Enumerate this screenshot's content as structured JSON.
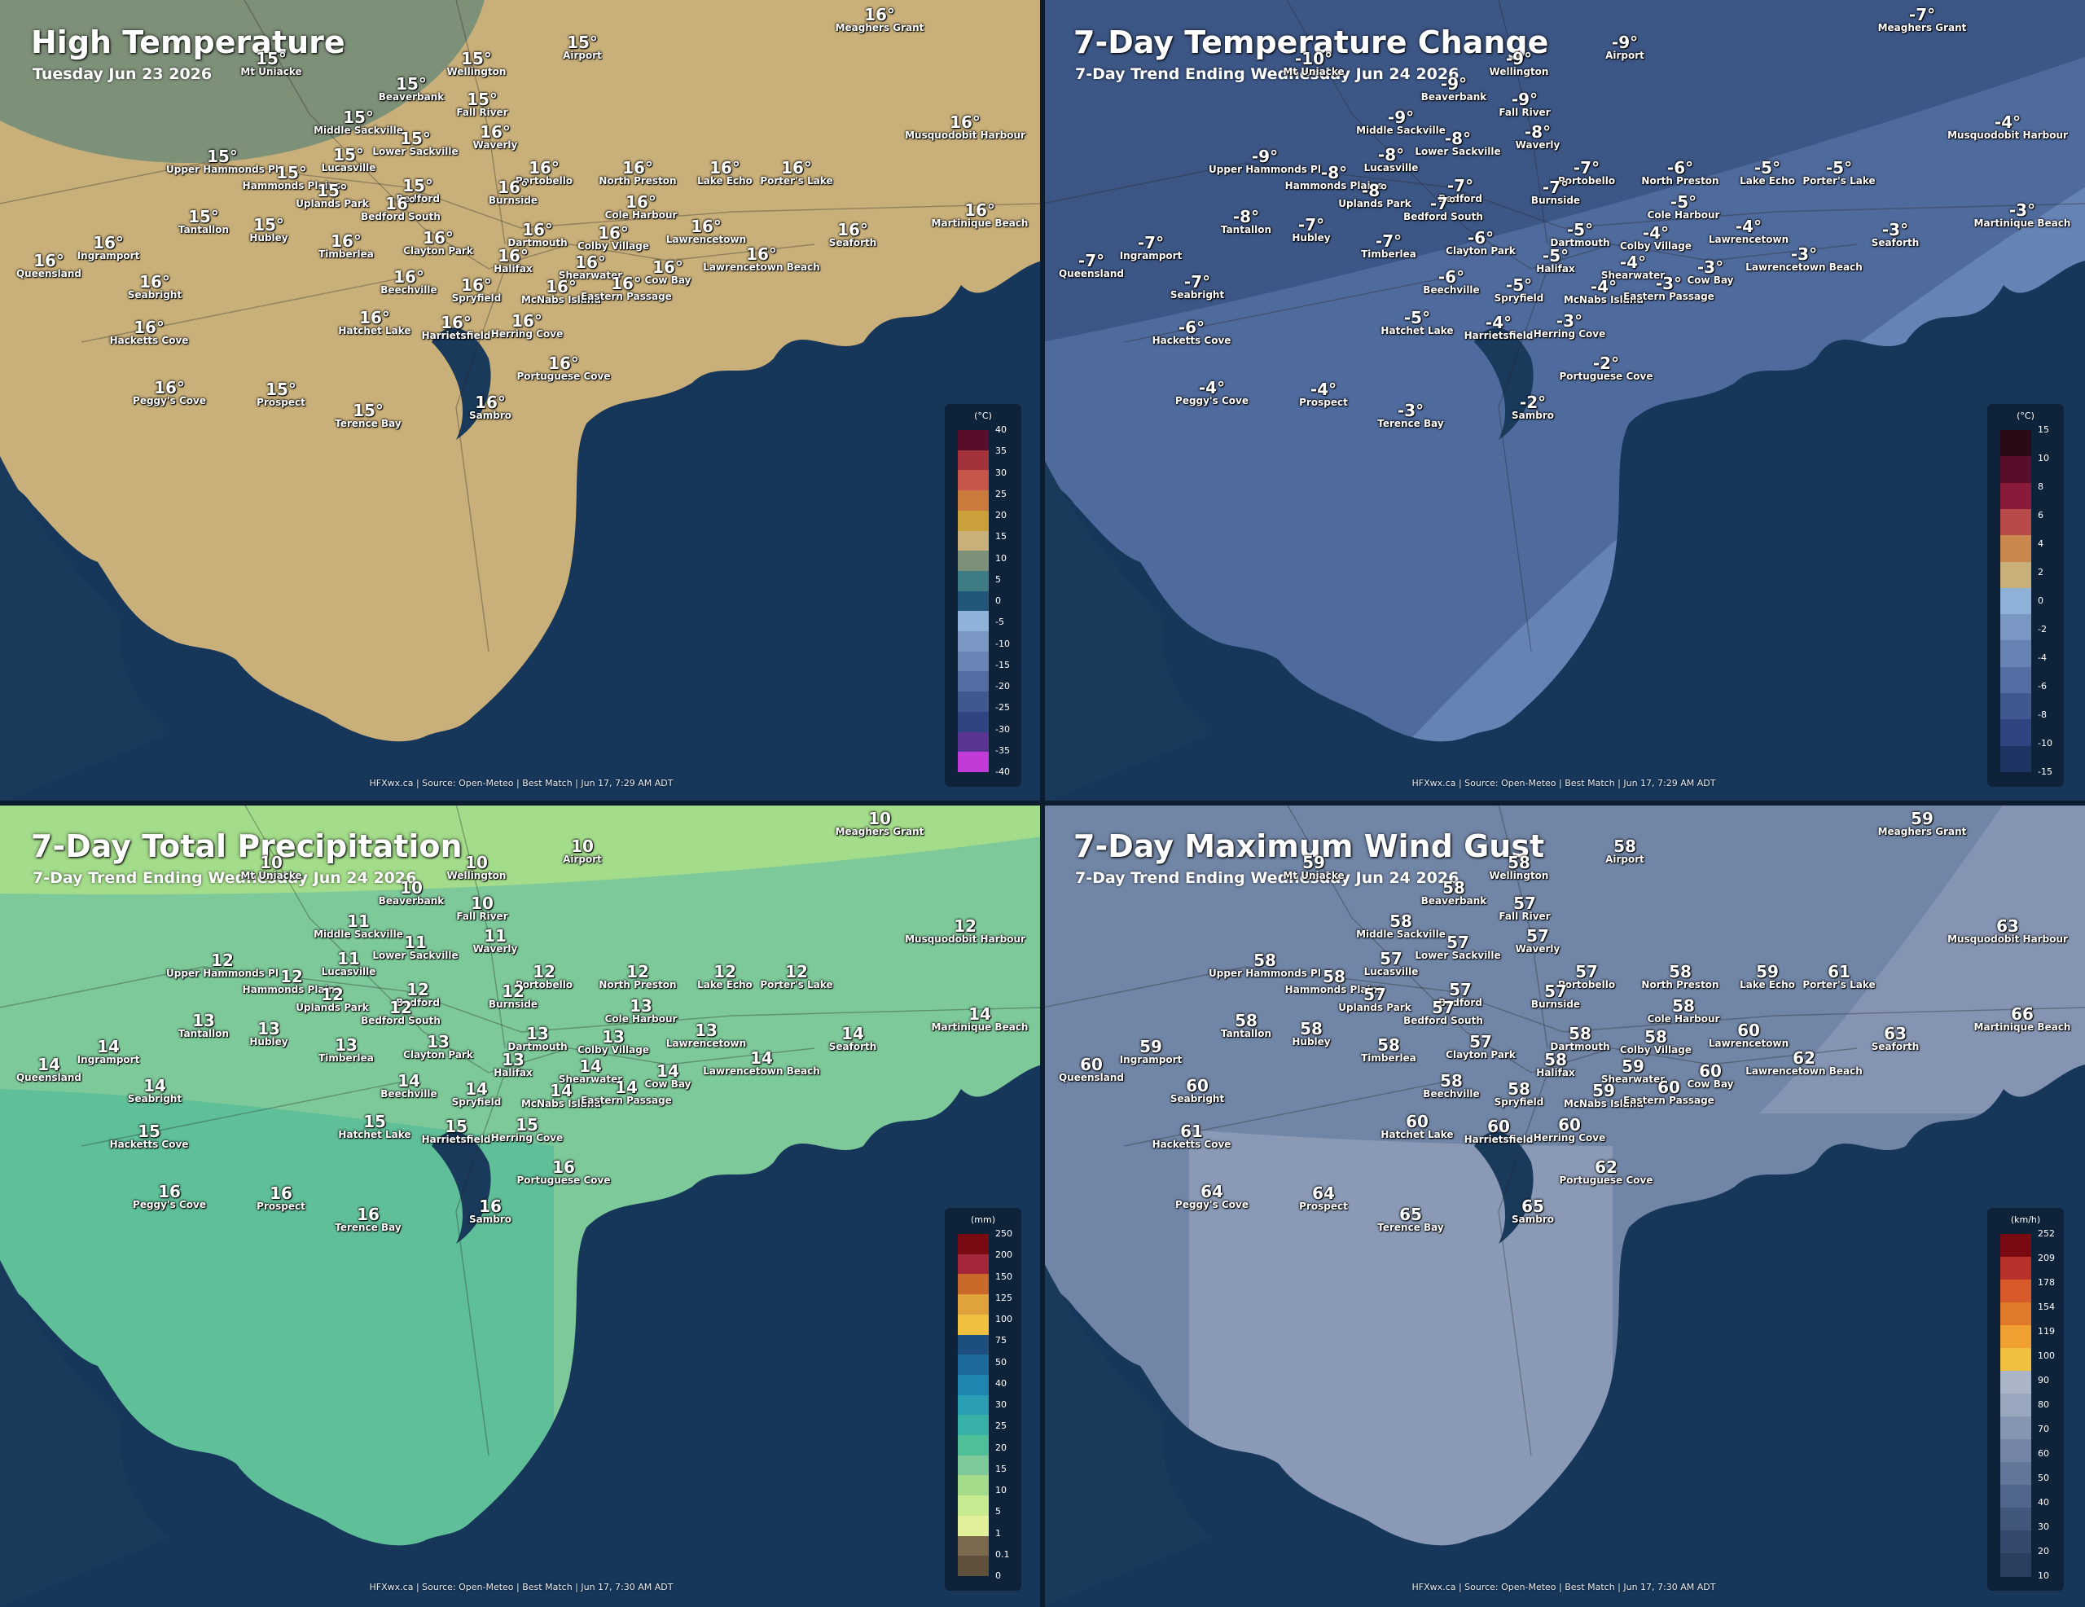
{
  "panels": [
    {
      "title": "High Temperature",
      "subtitle": "Tuesday Jun 23 2026",
      "footer": "HFXwx.ca | Source: Open-Meteo | Best Match | Jun 17, 7:29 AM ADT",
      "land_color": "#c9b07a",
      "zone_colors": [
        "#7d9078"
      ],
      "legend": {
        "unit": "(°C)",
        "ticks": [
          "40",
          "35",
          "30",
          "25",
          "20",
          "15",
          "10",
          "5",
          "0",
          "-5",
          "-10",
          "-15",
          "-20",
          "-25",
          "-30",
          "-35",
          "-40"
        ],
        "colors": [
          "#5a0d2a",
          "#a3323b",
          "#c8554a",
          "#c97a3c",
          "#c9a03a",
          "#c9b07a",
          "#7d9078",
          "#3e7c85",
          "#23577a",
          "#8fb2d8",
          "#7a97c4",
          "#6a84b6",
          "#546ea3",
          "#3f5890",
          "#2f4480",
          "#5a3594",
          "#c23ad8"
        ]
      },
      "labels": {
        "mtuniacke": "15°",
        "wellington": "15°",
        "airport": "15°",
        "meaghers": "16°",
        "beaverbank": "15°",
        "fallriver": "15°",
        "middlesackville": "15°",
        "lowersackville": "15°",
        "waverly": "16°",
        "upperhammonds": "15°",
        "lucasville": "15°",
        "hammondsplains": "15°",
        "uplandspark": "15°",
        "bedford": "15°",
        "portobello": "16°",
        "northpreston": "16°",
        "lakeecho": "16°",
        "porterslake": "16°",
        "musquodobit": "16°",
        "burnside": "16°",
        "bedfordsouth": "16°",
        "coleharbour": "16°",
        "tantallon": "15°",
        "hubley": "15°",
        "dartmouth": "16°",
        "colbyvillage": "16°",
        "lawrencetown": "16°",
        "seaforth": "16°",
        "martinique": "16°",
        "ingramport": "16°",
        "timberlea": "16°",
        "claytonpark": "16°",
        "halifax": "16°",
        "queensland": "16°",
        "beechville": "16°",
        "shearwater": "16°",
        "cowbay": "16°",
        "lawrencetownbeach": "16°",
        "seabright": "16°",
        "spryfield": "16°",
        "mcnabs": "16°",
        "easternpassage": "16°",
        "hackettscove": "16°",
        "hatchetlake": "16°",
        "harrietsfield": "16°",
        "herringcove": "16°",
        "portuguesecove": "16°",
        "peggyscove": "16°",
        "prospect": "15°",
        "terencebay": "15°",
        "sambro": "16°"
      }
    },
    {
      "title": "7-Day Temperature Change",
      "subtitle": "7-Day Trend Ending Wednesday Jun 24 2026",
      "footer": "HFXwx.ca | Source: Open-Meteo | Best Match | Jun 17, 7:29 AM ADT",
      "land_color": "#3c5686",
      "zone_colors": [
        "#4f6a9c",
        "#6683b6",
        "#86a3cf"
      ],
      "legend": {
        "unit": "(°C)",
        "ticks": [
          "15",
          "10",
          "8",
          "6",
          "4",
          "2",
          "0",
          "-2",
          "-4",
          "-6",
          "-8",
          "-10",
          "-15"
        ],
        "colors": [
          "#2a0a14",
          "#5a0d2a",
          "#8a1a3a",
          "#b84a4a",
          "#c9874e",
          "#c9b07a",
          "#8fb2d8",
          "#7a97c4",
          "#6783b3",
          "#546ea3",
          "#3f5890",
          "#2f4480",
          "#1e3462"
        ]
      },
      "labels": {
        "mtuniacke": "-10°",
        "wellington": "-9°",
        "airport": "-9°",
        "meaghers": "-7°",
        "beaverbank": "-9°",
        "fallriver": "-9°",
        "middlesackville": "-9°",
        "lowersackville": "-8°",
        "waverly": "-8°",
        "upperhammonds": "-9°",
        "lucasville": "-8°",
        "hammondsplains": "-8°",
        "uplandspark": "-8°",
        "bedford": "-7°",
        "portobello": "-7°",
        "northpreston": "-6°",
        "lakeecho": "-5°",
        "porterslake": "-5°",
        "musquodobit": "-4°",
        "burnside": "-7°",
        "bedfordsouth": "-7°",
        "coleharbour": "-5°",
        "tantallon": "-8°",
        "hubley": "-7°",
        "dartmouth": "-5°",
        "colbyvillage": "-4°",
        "lawrencetown": "-4°",
        "seaforth": "-3°",
        "martinique": "-3°",
        "ingramport": "-7°",
        "timberlea": "-7°",
        "claytonpark": "-6°",
        "halifax": "-5°",
        "queensland": "-7°",
        "beechville": "-6°",
        "shearwater": "-4°",
        "cowbay": "-3°",
        "lawrencetownbeach": "-3°",
        "seabright": "-7°",
        "spryfield": "-5°",
        "mcnabs": "-4°",
        "easternpassage": "-3°",
        "hackettscove": "-6°",
        "hatchetlake": "-5°",
        "harrietsfield": "-4°",
        "herringcove": "-3°",
        "portuguesecove": "-2°",
        "peggyscove": "-4°",
        "prospect": "-4°",
        "terencebay": "-3°",
        "sambro": "-2°"
      }
    },
    {
      "title": "7-Day Total Precipitation",
      "subtitle": "7-Day Trend Ending Wednesday Jun 24 2026",
      "footer": "HFXwx.ca | Source: Open-Meteo | Best Match | Jun 17, 7:30 AM ADT",
      "land_color": "#7dc99a",
      "zone_colors": [
        "#a3dc8a",
        "#5fbf98"
      ],
      "legend": {
        "unit": "(mm)",
        "ticks": [
          "250",
          "200",
          "150",
          "125",
          "100",
          "75",
          "50",
          "40",
          "30",
          "25",
          "20",
          "15",
          "10",
          "5",
          "1",
          "0.1",
          "0"
        ],
        "colors": [
          "#7a0a12",
          "#a3263a",
          "#c96a2a",
          "#e0a23a",
          "#f0c040",
          "#1d4f7e",
          "#1d6a9c",
          "#1f86b2",
          "#2a9eb2",
          "#37b0a8",
          "#4fbf98",
          "#7dc99a",
          "#a3dc8a",
          "#c8ea90",
          "#e2f09a",
          "#7b6a4e",
          "#5e503a"
        ]
      },
      "labels": {
        "mtuniacke": "10",
        "wellington": "10",
        "airport": "10",
        "meaghers": "10",
        "beaverbank": "10",
        "fallriver": "10",
        "middlesackville": "11",
        "lowersackville": "11",
        "waverly": "11",
        "upperhammonds": "12",
        "lucasville": "11",
        "hammondsplains": "12",
        "uplandspark": "12",
        "bedford": "12",
        "portobello": "12",
        "northpreston": "12",
        "lakeecho": "12",
        "porterslake": "12",
        "musquodobit": "12",
        "burnside": "12",
        "bedfordsouth": "12",
        "coleharbour": "13",
        "tantallon": "13",
        "hubley": "13",
        "dartmouth": "13",
        "colbyvillage": "13",
        "lawrencetown": "13",
        "seaforth": "14",
        "martinique": "14",
        "ingramport": "14",
        "timberlea": "13",
        "claytonpark": "13",
        "halifax": "13",
        "queensland": "14",
        "beechville": "14",
        "shearwater": "14",
        "cowbay": "14",
        "lawrencetownbeach": "14",
        "seabright": "14",
        "spryfield": "14",
        "mcnabs": "14",
        "easternpassage": "14",
        "hackettscove": "15",
        "hatchetlake": "15",
        "harrietsfield": "15",
        "herringcove": "15",
        "portuguesecove": "16",
        "peggyscove": "16",
        "prospect": "16",
        "terencebay": "16",
        "sambro": "16"
      }
    },
    {
      "title": "7-Day Maximum Wind Gust",
      "subtitle": "7-Day Trend Ending Wednesday Jun 24 2026",
      "footer": "HFXwx.ca | Source: Open-Meteo | Best Match | Jun 17, 7:30 AM ADT",
      "land_color": "#7185a6",
      "zone_colors": [
        "#8494b2",
        "#8a9ab6"
      ],
      "legend": {
        "unit": "(km/h)",
        "ticks": [
          "252",
          "209",
          "178",
          "154",
          "119",
          "100",
          "90",
          "80",
          "70",
          "60",
          "50",
          "40",
          "30",
          "20",
          "10"
        ],
        "colors": [
          "#7a0a12",
          "#b8302a",
          "#d85a2a",
          "#e07a2a",
          "#f0a030",
          "#f0c040",
          "#aab6c8",
          "#98a6be",
          "#8696b2",
          "#7485a6",
          "#62769a",
          "#51668c",
          "#42577c",
          "#36496c",
          "#2c3e5e"
        ]
      },
      "labels": {
        "mtuniacke": "59",
        "wellington": "58",
        "airport": "58",
        "meaghers": "59",
        "beaverbank": "58",
        "fallriver": "57",
        "middlesackville": "58",
        "lowersackville": "57",
        "waverly": "57",
        "upperhammonds": "58",
        "lucasville": "57",
        "hammondsplains": "58",
        "uplandspark": "57",
        "bedford": "57",
        "portobello": "57",
        "northpreston": "58",
        "lakeecho": "59",
        "porterslake": "61",
        "musquodobit": "63",
        "burnside": "57",
        "bedfordsouth": "57",
        "coleharbour": "58",
        "tantallon": "58",
        "hubley": "58",
        "dartmouth": "58",
        "colbyvillage": "58",
        "lawrencetown": "60",
        "seaforth": "63",
        "martinique": "66",
        "ingramport": "59",
        "timberlea": "58",
        "claytonpark": "57",
        "halifax": "58",
        "queensland": "60",
        "beechville": "58",
        "shearwater": "59",
        "cowbay": "60",
        "lawrencetownbeach": "62",
        "seabright": "60",
        "spryfield": "58",
        "mcnabs": "59",
        "easternpassage": "60",
        "hackettscove": "61",
        "hatchetlake": "60",
        "harrietsfield": "60",
        "herringcove": "60",
        "portuguesecove": "62",
        "peggyscove": "64",
        "prospect": "64",
        "terencebay": "65",
        "sambro": "65"
      }
    }
  ],
  "places": {
    "mtuniacke": "Mt Uniacke",
    "wellington": "Wellington",
    "airport": "Airport",
    "meaghers": "Meaghers Grant",
    "beaverbank": "Beaverbank",
    "fallriver": "Fall River",
    "middlesackville": "Middle Sackville",
    "lowersackville": "Lower Sackville",
    "waverly": "Waverly",
    "upperhammonds": "Upper Hammonds Pl",
    "lucasville": "Lucasville",
    "hammondsplains": "Hammonds Plains",
    "uplandspark": "Uplands Park",
    "bedford": "Bedford",
    "portobello": "Portobello",
    "northpreston": "North Preston",
    "lakeecho": "Lake Echo",
    "porterslake": "Porter's Lake",
    "musquodobit": "Musquodobit Harbour",
    "burnside": "Burnside",
    "bedfordsouth": "Bedford South",
    "coleharbour": "Cole Harbour",
    "tantallon": "Tantallon",
    "hubley": "Hubley",
    "dartmouth": "Dartmouth",
    "colbyvillage": "Colby Village",
    "lawrencetown": "Lawrencetown",
    "seaforth": "Seaforth",
    "martinique": "Martinique Beach",
    "ingramport": "Ingramport",
    "timberlea": "Timberlea",
    "claytonpark": "Clayton Park",
    "halifax": "Halifax",
    "queensland": "Queensland",
    "beechville": "Beechville",
    "shearwater": "Shearwater",
    "cowbay": "Cow Bay",
    "lawrencetownbeach": "Lawrencetown Beach",
    "seabright": "Seabright",
    "spryfield": "Spryfield",
    "mcnabs": "McNabs Island",
    "easternpassage": "Eastern Passage",
    "hackettscove": "Hacketts Cove",
    "hatchetlake": "Hatchet Lake",
    "harrietsfield": "Harrietsfield",
    "herringcove": "Herring Cove",
    "portuguesecove": "Portuguese Cove",
    "peggyscove": "Peggy's Cove",
    "prospect": "Prospect",
    "terencebay": "Terence Bay",
    "sambro": "Sambro"
  }
}
